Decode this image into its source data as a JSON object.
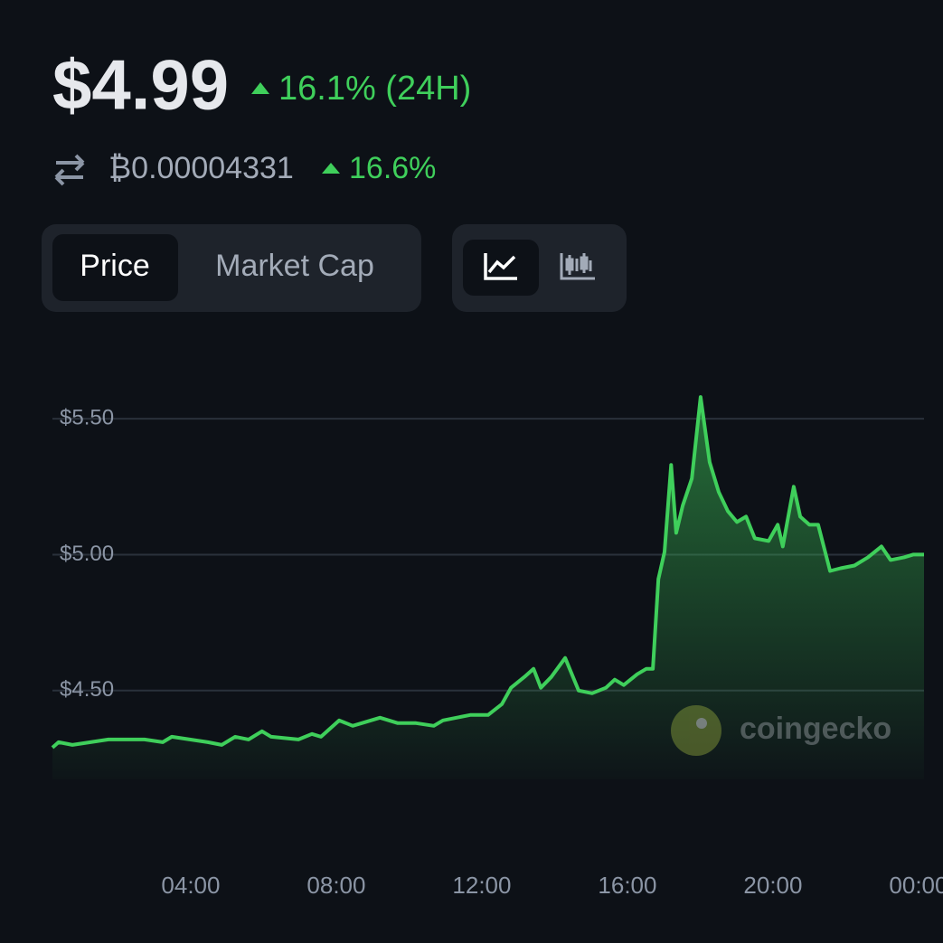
{
  "header": {
    "price": "$4.99",
    "change": "16.1% (24H)",
    "btc_price": "₿0.00004331",
    "btc_change": "16.6%"
  },
  "tabs": [
    "Price",
    "Market Cap"
  ],
  "watermark": "coingecko",
  "chart_data": {
    "type": "line",
    "color": "#3fcf5b",
    "grid": true,
    "x": [
      0.2,
      0.37,
      0.75,
      1.74,
      2.73,
      3.23,
      3.48,
      4.47,
      4.85,
      5.22,
      5.59,
      5.96,
      6.21,
      6.96,
      7.33,
      7.58,
      8.08,
      8.45,
      9.2,
      9.69,
      10.19,
      10.68,
      10.93,
      11.68,
      12.17,
      12.55,
      12.8,
      13.17,
      13.42,
      13.62,
      13.91,
      14.29,
      14.66,
      15.03,
      15.41,
      15.65,
      15.9,
      16.27,
      16.52,
      16.7,
      16.85,
      17.02,
      17.2,
      17.34,
      17.52,
      17.77,
      18.01,
      18.26,
      18.51,
      18.76,
      19.01,
      19.26,
      19.5,
      19.88,
      20.13,
      20.27,
      20.57,
      20.75,
      21.0,
      21.24,
      21.57,
      21.86,
      22.24,
      22.61,
      22.98,
      23.23,
      23.6,
      23.85,
      24.15
    ],
    "values": [
      4.29,
      4.31,
      4.3,
      4.32,
      4.32,
      4.31,
      4.33,
      4.31,
      4.3,
      4.33,
      4.32,
      4.35,
      4.33,
      4.32,
      4.34,
      4.33,
      4.39,
      4.37,
      4.4,
      4.38,
      4.38,
      4.37,
      4.39,
      4.41,
      4.41,
      4.45,
      4.51,
      4.55,
      4.58,
      4.51,
      4.55,
      4.62,
      4.5,
      4.49,
      4.51,
      4.54,
      4.52,
      4.56,
      4.58,
      4.58,
      4.91,
      5.01,
      5.33,
      5.08,
      5.18,
      5.28,
      5.58,
      5.34,
      5.23,
      5.16,
      5.12,
      5.14,
      5.06,
      5.05,
      5.11,
      5.03,
      5.25,
      5.14,
      5.11,
      5.11,
      4.94,
      4.95,
      4.96,
      4.99,
      5.03,
      4.98,
      4.99,
      5.0,
      5.0
    ],
    "xlim": [
      0.2,
      24.2
    ],
    "ylim": [
      4.1,
      5.7
    ],
    "xticks": [
      {
        "value": 4,
        "label": "04:00"
      },
      {
        "value": 8,
        "label": "08:00"
      },
      {
        "value": 12,
        "label": "12:00"
      },
      {
        "value": 16,
        "label": "16:00"
      },
      {
        "value": 20,
        "label": "20:00"
      },
      {
        "value": 24,
        "label": "00:00"
      }
    ],
    "yticks": [
      {
        "value": 4.5,
        "label": "$4.50"
      },
      {
        "value": 5,
        "label": "$5.00"
      },
      {
        "value": 5.5,
        "label": "$5.50"
      }
    ]
  }
}
